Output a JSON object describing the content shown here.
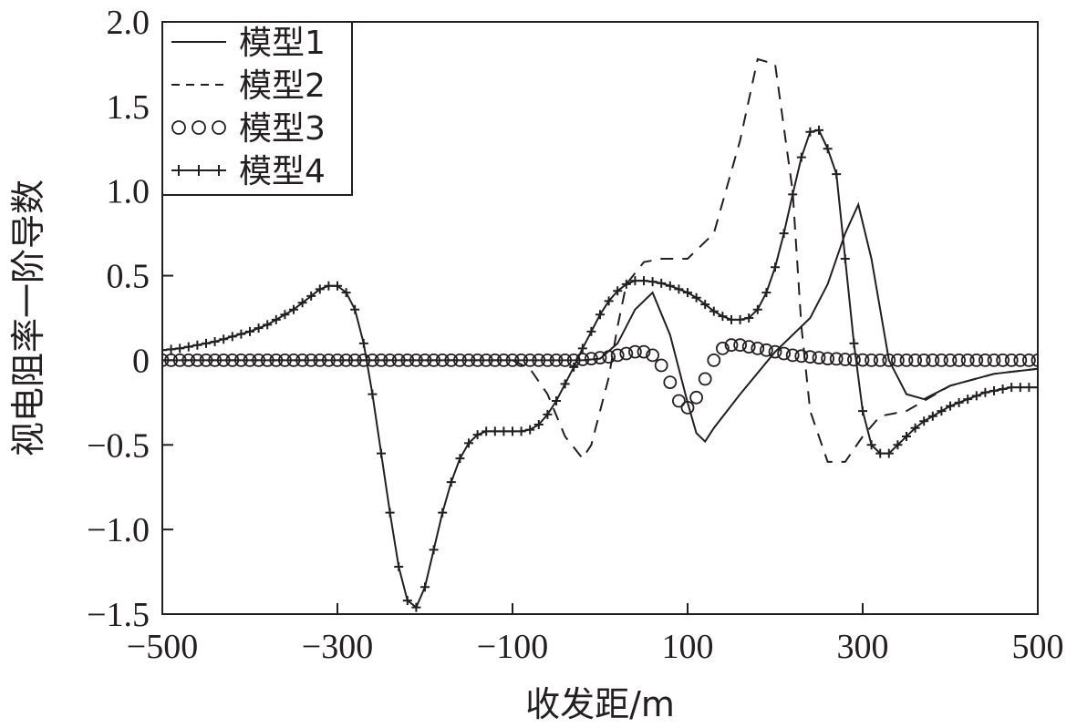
{
  "chart_data": {
    "type": "line",
    "xlabel": "收发距/m",
    "ylabel": "视电阻率一阶导数",
    "xlim": [
      -500,
      500
    ],
    "ylim": [
      -1.5,
      2.0
    ],
    "x_ticks": [
      -500,
      -300,
      -100,
      100,
      300,
      500
    ],
    "x_tick_labels": [
      "−500",
      "−300",
      "−100",
      "100",
      "300",
      "500"
    ],
    "y_ticks": [
      -1.5,
      -1.0,
      -0.5,
      0,
      0.5,
      1.0,
      1.5,
      2.0
    ],
    "y_tick_labels": [
      "−1.5",
      "−1.0",
      "−0.5",
      "0",
      "0.5",
      "1.0",
      "1.5",
      "2.0"
    ],
    "grid": false,
    "legend_position": "top-left",
    "series": [
      {
        "name": "模型1",
        "style": "solid",
        "x": [
          -500,
          -100,
          -20,
          0,
          20,
          40,
          60,
          80,
          100,
          110,
          120,
          130,
          160,
          200,
          240,
          260,
          280,
          295,
          310,
          330,
          350,
          370,
          400,
          450,
          500
        ],
        "y": [
          0,
          0,
          0,
          0.01,
          0.1,
          0.3,
          0.4,
          0.15,
          -0.25,
          -0.43,
          -0.48,
          -0.4,
          -0.2,
          0.05,
          0.25,
          0.45,
          0.75,
          0.92,
          0.6,
          0.0,
          -0.2,
          -0.23,
          -0.15,
          -0.08,
          -0.05
        ]
      },
      {
        "name": "模型2",
        "style": "dashed",
        "x": [
          -500,
          -100,
          -80,
          -60,
          -40,
          -20,
          -10,
          0,
          10,
          20,
          30,
          50,
          70,
          100,
          130,
          160,
          180,
          200,
          220,
          230,
          240,
          260,
          280,
          300,
          320,
          350,
          400,
          450,
          500
        ],
        "y": [
          0,
          0,
          -0.05,
          -0.2,
          -0.45,
          -0.58,
          -0.5,
          -0.3,
          -0.1,
          0.2,
          0.45,
          0.58,
          0.6,
          0.6,
          0.75,
          1.3,
          1.78,
          1.75,
          1.0,
          0.2,
          -0.3,
          -0.6,
          -0.6,
          -0.45,
          -0.33,
          -0.3,
          -0.15,
          -0.08,
          -0.05
        ]
      },
      {
        "name": "模型3",
        "style": "circles",
        "x": [
          -500,
          -490,
          -480,
          -470,
          -460,
          -450,
          -440,
          -430,
          -420,
          -410,
          -400,
          -390,
          -380,
          -370,
          -360,
          -350,
          -340,
          -330,
          -320,
          -310,
          -300,
          -290,
          -280,
          -270,
          -260,
          -250,
          -240,
          -230,
          -220,
          -210,
          -200,
          -190,
          -180,
          -170,
          -160,
          -150,
          -140,
          -130,
          -120,
          -110,
          -100,
          -90,
          -80,
          -70,
          -60,
          -50,
          -40,
          -30,
          -20,
          -10,
          0,
          10,
          20,
          30,
          40,
          50,
          60,
          70,
          80,
          90,
          100,
          110,
          120,
          130,
          140,
          150,
          160,
          170,
          180,
          190,
          200,
          210,
          220,
          230,
          240,
          250,
          260,
          270,
          280,
          290,
          300,
          310,
          320,
          330,
          340,
          350,
          360,
          370,
          380,
          390,
          400,
          410,
          420,
          430,
          440,
          450,
          460,
          470,
          480,
          490,
          500
        ],
        "y": [
          0,
          0,
          0,
          0,
          0,
          0,
          0,
          0,
          0,
          0,
          0,
          0,
          0,
          0,
          0,
          0,
          0,
          0,
          0,
          0,
          0,
          0,
          0,
          0,
          0,
          0,
          0,
          0,
          0,
          0,
          0,
          0,
          0,
          0,
          0,
          0,
          0,
          0,
          0,
          0,
          0,
          0,
          0,
          0,
          0,
          0,
          0,
          0,
          0.005,
          0.01,
          0.015,
          0.02,
          0.03,
          0.04,
          0.05,
          0.05,
          0.03,
          -0.03,
          -0.13,
          -0.24,
          -0.28,
          -0.22,
          -0.11,
          0.0,
          0.07,
          0.09,
          0.09,
          0.08,
          0.07,
          0.06,
          0.05,
          0.04,
          0.03,
          0.025,
          0.02,
          0.015,
          0.01,
          0.008,
          0.005,
          0.003,
          0.002,
          0,
          0,
          0,
          0,
          0,
          0,
          0,
          0,
          0,
          0,
          0,
          0,
          0,
          0,
          0,
          0,
          0,
          0,
          0,
          0
        ]
      },
      {
        "name": "模型4",
        "style": "crosses",
        "x": [
          -500,
          -490,
          -480,
          -470,
          -460,
          -450,
          -440,
          -430,
          -420,
          -410,
          -400,
          -390,
          -380,
          -370,
          -360,
          -350,
          -340,
          -330,
          -320,
          -310,
          -300,
          -290,
          -280,
          -270,
          -260,
          -250,
          -240,
          -230,
          -220,
          -210,
          -200,
          -190,
          -180,
          -170,
          -160,
          -150,
          -140,
          -130,
          -120,
          -110,
          -100,
          -90,
          -80,
          -70,
          -60,
          -50,
          -40,
          -30,
          -20,
          -10,
          0,
          10,
          20,
          30,
          40,
          50,
          60,
          70,
          80,
          90,
          100,
          110,
          120,
          130,
          140,
          150,
          160,
          170,
          180,
          190,
          200,
          210,
          220,
          230,
          240,
          250,
          260,
          270,
          280,
          290,
          300,
          310,
          320,
          330,
          340,
          350,
          360,
          370,
          380,
          390,
          400,
          410,
          420,
          430,
          440,
          450,
          460,
          470,
          480,
          490,
          500
        ],
        "y": [
          0.06,
          0.065,
          0.07,
          0.08,
          0.09,
          0.1,
          0.11,
          0.125,
          0.14,
          0.155,
          0.17,
          0.19,
          0.21,
          0.24,
          0.27,
          0.3,
          0.34,
          0.38,
          0.42,
          0.44,
          0.44,
          0.4,
          0.3,
          0.1,
          -0.2,
          -0.55,
          -0.9,
          -1.22,
          -1.42,
          -1.46,
          -1.34,
          -1.12,
          -0.9,
          -0.72,
          -0.58,
          -0.49,
          -0.44,
          -0.42,
          -0.42,
          -0.42,
          -0.42,
          -0.42,
          -0.41,
          -0.38,
          -0.32,
          -0.24,
          -0.14,
          -0.04,
          0.07,
          0.17,
          0.27,
          0.35,
          0.41,
          0.45,
          0.47,
          0.47,
          0.465,
          0.455,
          0.44,
          0.42,
          0.4,
          0.37,
          0.33,
          0.29,
          0.26,
          0.24,
          0.24,
          0.25,
          0.3,
          0.4,
          0.55,
          0.75,
          0.98,
          1.2,
          1.35,
          1.36,
          1.25,
          1.1,
          0.6,
          0.1,
          -0.3,
          -0.5,
          -0.55,
          -0.55,
          -0.5,
          -0.45,
          -0.4,
          -0.36,
          -0.33,
          -0.3,
          -0.27,
          -0.25,
          -0.23,
          -0.21,
          -0.19,
          -0.18,
          -0.17,
          -0.16,
          -0.16,
          -0.16,
          -0.16
        ]
      }
    ]
  }
}
